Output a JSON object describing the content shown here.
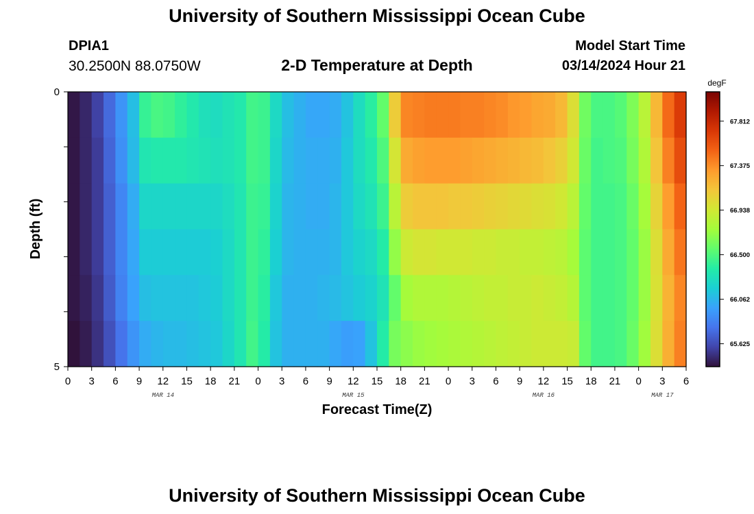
{
  "page": {
    "title": "University of Southern Mississippi Ocean Cube",
    "footer_title": "University of Southern Mississippi Ocean Cube",
    "station_id": "DPIA1",
    "station_coords": "30.2500N  88.0750W",
    "subtitle": "2-D Temperature at Depth",
    "model_start_label": "Model Start Time",
    "model_start_value": "03/14/2024 Hour 21"
  },
  "chart_data": {
    "type": "heatmap",
    "title": "2-D Temperature at Depth",
    "xlabel": "Forecast Time(Z)",
    "ylabel": "Depth (ft)",
    "x_tick_labels": [
      "0",
      "3",
      "6",
      "9",
      "12",
      "15",
      "18",
      "21",
      "0",
      "3",
      "6",
      "9",
      "12",
      "15",
      "18",
      "21",
      "0",
      "3",
      "6",
      "9",
      "12",
      "15",
      "18",
      "21",
      "0",
      "3",
      "6"
    ],
    "x_range_hours": [
      0,
      78
    ],
    "date_labels": [
      {
        "label": "MAR 14",
        "hour": 12
      },
      {
        "label": "MAR 15",
        "hour": 36
      },
      {
        "label": "MAR 16",
        "hour": 60
      },
      {
        "label": "MAR 17",
        "hour": 75
      }
    ],
    "y_range": [
      0,
      5
    ],
    "y_tick_labels": [
      "0",
      "5"
    ],
    "depth_levels_ft": [
      0,
      1,
      2,
      3,
      4,
      5
    ],
    "colorbar": {
      "unit": "degF",
      "range": [
        65.4,
        68.1
      ],
      "tick_labels": [
        "67.812",
        "67.375",
        "66.938",
        "66.500",
        "66.062",
        "65.625"
      ],
      "tick_values": [
        67.812,
        67.375,
        66.938,
        66.5,
        66.062,
        65.625
      ],
      "colors": [
        "#30123b",
        "#4145ab",
        "#4675ed",
        "#39a2fc",
        "#1bcfd4",
        "#24eca6",
        "#61fc6c",
        "#a4fc3b",
        "#d1e834",
        "#f3c63a",
        "#fe9b2d",
        "#f36315",
        "#d93806",
        "#b11901",
        "#7a0403"
      ]
    },
    "time_hours": [
      0,
      1.5,
      3,
      4.5,
      6,
      7.5,
      9,
      10.5,
      12,
      13.5,
      15,
      16.5,
      18,
      19.5,
      21,
      22.5,
      24,
      25.5,
      27,
      28.5,
      30,
      31.5,
      33,
      34.5,
      36,
      37.5,
      39,
      40.5,
      42,
      43.5,
      45,
      46.5,
      48,
      49.5,
      51,
      52.5,
      54,
      55.5,
      57,
      58.5,
      60,
      61.5,
      63,
      64.5,
      66,
      67.5,
      69,
      70.5,
      72,
      73.5,
      75,
      76.5,
      78
    ],
    "values_degF": [
      [
        65.42,
        65.48,
        65.58,
        65.74,
        65.92,
        66.1,
        66.42,
        66.48,
        66.46,
        66.4,
        66.34,
        66.28,
        66.26,
        66.3,
        66.34,
        66.46,
        66.44,
        66.24,
        66.1,
        66.04,
        66.0,
        66.0,
        66.02,
        66.12,
        66.26,
        66.38,
        66.56,
        67.1,
        67.4,
        67.42,
        67.44,
        67.44,
        67.44,
        67.42,
        67.42,
        67.4,
        67.38,
        67.34,
        67.32,
        67.28,
        67.26,
        67.2,
        67.0,
        66.6,
        66.48,
        66.48,
        66.52,
        66.64,
        66.84,
        67.2,
        67.5,
        67.7,
        67.9
      ],
      [
        65.42,
        65.48,
        65.56,
        65.72,
        65.9,
        66.08,
        66.32,
        66.34,
        66.34,
        66.34,
        66.32,
        66.3,
        66.28,
        66.3,
        66.34,
        66.46,
        66.44,
        66.22,
        66.08,
        66.04,
        66.02,
        66.02,
        66.04,
        66.14,
        66.26,
        66.34,
        66.5,
        66.96,
        67.26,
        67.3,
        67.32,
        67.32,
        67.32,
        67.3,
        67.28,
        67.26,
        67.24,
        67.22,
        67.2,
        67.18,
        67.14,
        67.08,
        66.94,
        66.58,
        66.46,
        66.48,
        66.5,
        66.62,
        66.8,
        67.14,
        67.42,
        67.62,
        67.82
      ],
      [
        65.42,
        65.48,
        65.56,
        65.7,
        65.86,
        66.02,
        66.22,
        66.22,
        66.22,
        66.22,
        66.22,
        66.22,
        66.22,
        66.26,
        66.32,
        66.44,
        66.42,
        66.2,
        66.06,
        66.04,
        66.02,
        66.02,
        66.06,
        66.14,
        66.24,
        66.3,
        66.44,
        66.84,
        67.1,
        67.14,
        67.14,
        67.14,
        67.12,
        67.12,
        67.1,
        67.08,
        67.06,
        67.04,
        67.02,
        67.0,
        66.98,
        66.94,
        66.84,
        66.56,
        66.46,
        66.46,
        66.48,
        66.58,
        66.76,
        67.06,
        67.32,
        67.52,
        67.7
      ],
      [
        65.42,
        65.48,
        65.56,
        65.7,
        65.86,
        66.0,
        66.16,
        66.16,
        66.16,
        66.16,
        66.16,
        66.16,
        66.18,
        66.24,
        66.32,
        66.44,
        66.4,
        66.18,
        66.06,
        66.04,
        66.04,
        66.04,
        66.06,
        66.14,
        66.2,
        66.24,
        66.36,
        66.7,
        66.92,
        66.96,
        66.96,
        66.94,
        66.94,
        66.94,
        66.92,
        66.92,
        66.9,
        66.9,
        66.88,
        66.88,
        66.86,
        66.84,
        66.76,
        66.54,
        66.46,
        66.46,
        66.48,
        66.56,
        66.72,
        67.0,
        67.26,
        67.46,
        67.62
      ],
      [
        65.42,
        65.46,
        65.54,
        65.68,
        65.84,
        65.98,
        66.1,
        66.12,
        66.12,
        66.12,
        66.12,
        66.14,
        66.16,
        66.24,
        66.32,
        66.44,
        66.38,
        66.14,
        66.04,
        66.04,
        66.04,
        66.06,
        66.08,
        66.12,
        66.16,
        66.2,
        66.3,
        66.56,
        66.76,
        66.8,
        66.8,
        66.8,
        66.82,
        66.84,
        66.86,
        66.88,
        66.88,
        66.9,
        66.9,
        66.92,
        66.9,
        66.88,
        66.82,
        66.54,
        66.46,
        66.46,
        66.48,
        66.56,
        66.72,
        66.98,
        67.22,
        67.4,
        67.56
      ],
      [
        65.4,
        65.44,
        65.52,
        65.64,
        65.78,
        65.92,
        66.02,
        66.06,
        66.08,
        66.08,
        66.1,
        66.12,
        66.14,
        66.22,
        66.32,
        66.46,
        66.36,
        66.12,
        66.04,
        66.04,
        66.04,
        66.04,
        66.0,
        65.96,
        65.98,
        66.12,
        66.36,
        66.62,
        66.68,
        66.72,
        66.74,
        66.76,
        66.78,
        66.8,
        66.82,
        66.84,
        66.86,
        66.88,
        66.9,
        66.92,
        66.92,
        66.92,
        66.9,
        66.56,
        66.46,
        66.46,
        66.48,
        66.58,
        66.74,
        67.0,
        67.24,
        67.42,
        67.56
      ]
    ]
  }
}
